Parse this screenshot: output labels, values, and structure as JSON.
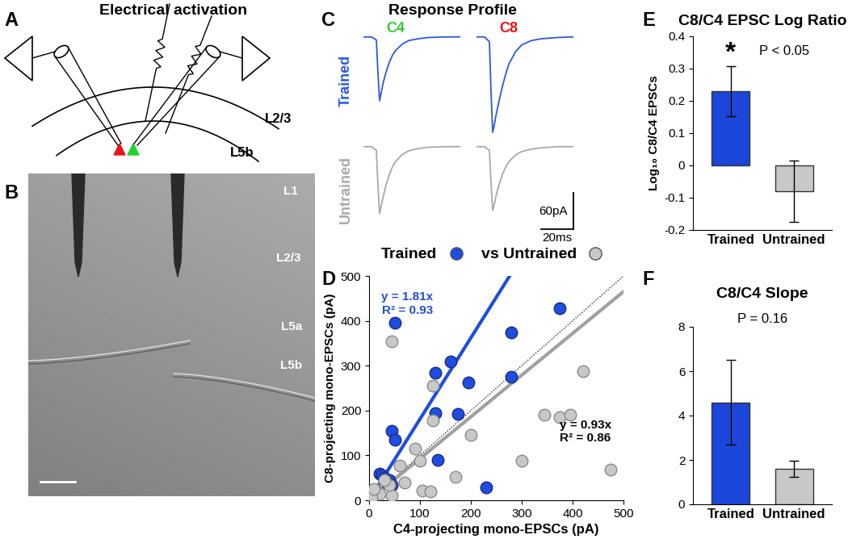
{
  "panels": {
    "A": {
      "letter": "A",
      "type": "diagram",
      "title": "Electrical activation",
      "layer_labels": [
        "L2/3",
        "L5b"
      ]
    },
    "B": {
      "letter": "B",
      "type": "image",
      "layer_labels": [
        "L1",
        "L2/3",
        "L5a",
        "L5b"
      ]
    },
    "C": {
      "letter": "C",
      "type": "traces",
      "title": "Response Profile",
      "columns": [
        {
          "name": "C4",
          "color": "#33cc33"
        },
        {
          "name": "C8",
          "color": "#ee1111"
        }
      ],
      "rows": [
        {
          "name": "Trained",
          "color": "#2a5ad8"
        },
        {
          "name": "Untrained",
          "color": "#a8a8a8"
        }
      ],
      "x": [
        0,
        5,
        8,
        9,
        10,
        11,
        12,
        14,
        16,
        18,
        20,
        24,
        28,
        34,
        40,
        50,
        60
      ],
      "traces": [
        [
          [
            0,
            0,
            -5,
            -60,
            -105,
            -92,
            -78,
            -58,
            -42,
            -30,
            -22,
            -12,
            -6,
            -3,
            -1,
            0,
            0
          ],
          [
            0,
            0,
            -8,
            -90,
            -157,
            -145,
            -130,
            -105,
            -82,
            -62,
            -45,
            -25,
            -13,
            -6,
            -3,
            -1,
            0
          ]
        ],
        [
          [
            0,
            0,
            -6,
            -65,
            -110,
            -98,
            -85,
            -63,
            -46,
            -33,
            -24,
            -13,
            -7,
            -3,
            -1,
            0,
            0
          ],
          [
            0,
            0,
            -6,
            -60,
            -105,
            -95,
            -82,
            -62,
            -46,
            -34,
            -25,
            -14,
            -8,
            -4,
            -2,
            0,
            0
          ]
        ]
      ],
      "xlim": [
        0,
        60
      ],
      "ylim": [
        -165,
        5
      ],
      "scale_bar": {
        "amplitude": 60,
        "amplitude_label": "60pA",
        "duration": 20,
        "duration_label": "20ms"
      }
    }
  },
  "chart_data": [
    {
      "letter": "D",
      "type": "scatter",
      "title_parts": [
        "Trained",
        "vs Untrained"
      ],
      "xlabel": "C4-projecting mono-EPSCs (pA)",
      "ylabel": "C8-projecting mono-EPSCs (pA)",
      "xlim": [
        0,
        500
      ],
      "ylim": [
        0,
        500
      ],
      "xticks": [
        0,
        100,
        200,
        300,
        400,
        500
      ],
      "yticks": [
        0,
        100,
        200,
        300,
        400,
        500
      ],
      "marker": "o",
      "series": [
        {
          "name": "Trained",
          "color": "#1f4de0",
          "x": [
            50,
            45,
            50,
            375,
            280,
            130,
            160,
            195,
            280,
            130,
            175,
            135,
            230,
            20,
            25,
            30,
            15,
            40,
            10,
            35,
            45
          ],
          "values": [
            395,
            155,
            135,
            428,
            375,
            285,
            310,
            262,
            275,
            195,
            192,
            90,
            28,
            60,
            55,
            50,
            20,
            45,
            10,
            40,
            35
          ],
          "fit": {
            "slope": 1.81,
            "label": "y = 1.81x",
            "r2_label": "R² = 0.93"
          }
        },
        {
          "name": "Untrained",
          "color": "#c8c8c8",
          "x": [
            45,
            420,
            125,
            200,
            125,
            90,
            345,
            375,
            395,
            300,
            475,
            100,
            170,
            105,
            120,
            60,
            45,
            20,
            40,
            5,
            30,
            70,
            10
          ],
          "values": [
            355,
            287,
            255,
            145,
            178,
            115,
            190,
            185,
            190,
            88,
            68,
            88,
            52,
            22,
            20,
            78,
            10,
            15,
            35,
            5,
            45,
            40,
            25
          ],
          "fit": {
            "slope": 0.93,
            "label": "y = 0.93x",
            "r2_label": "R² = 0.86"
          }
        }
      ],
      "reference_line": {
        "slope": 1,
        "line_style": "dotted"
      }
    },
    {
      "letter": "E",
      "type": "bar",
      "title": "C8/C4 EPSC Log Ratio",
      "ylabel": "Log₁₀ C8/C4 EPSCs",
      "categories": [
        "Trained",
        "Untrained"
      ],
      "values": [
        0.23,
        -0.08
      ],
      "errors": [
        0.078,
        0.095
      ],
      "colors": [
        "#1a47d8",
        "#c8c8c8"
      ],
      "ylim": [
        -0.2,
        0.4
      ],
      "yticks": [
        -0.2,
        -0.1,
        0,
        0.1,
        0.2,
        0.3,
        0.4
      ],
      "annotations": [
        "*",
        "P < 0.05"
      ]
    },
    {
      "letter": "F",
      "type": "bar",
      "title": "C8/C4 Slope",
      "categories": [
        "Trained",
        "Untrained"
      ],
      "values": [
        4.6,
        1.6
      ],
      "errors": [
        1.9,
        0.35
      ],
      "colors": [
        "#1a47d8",
        "#c8c8c8"
      ],
      "ylim": [
        0,
        8
      ],
      "yticks": [
        0,
        2,
        4,
        6,
        8
      ],
      "annotations": [
        "P = 0.16"
      ]
    }
  ]
}
